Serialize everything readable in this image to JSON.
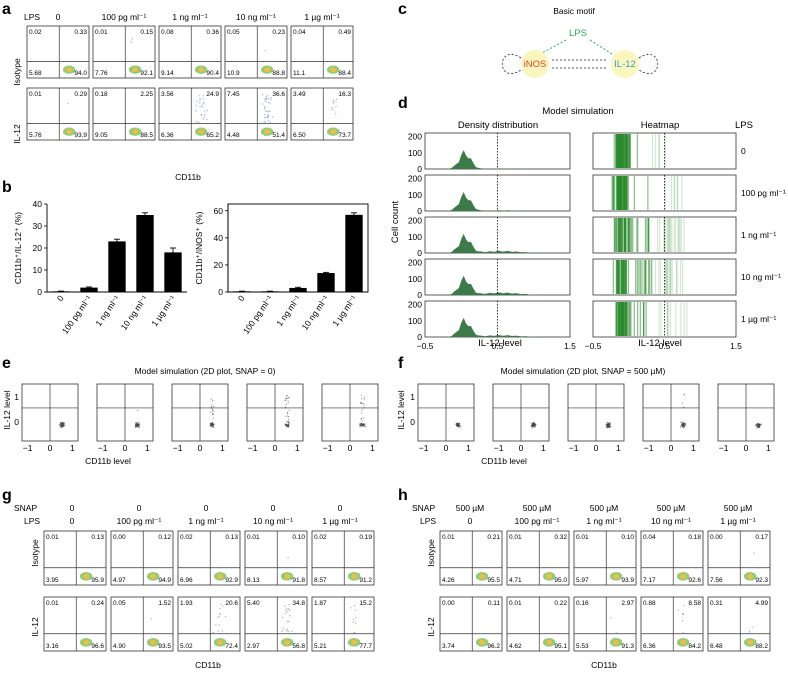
{
  "panel_labels": {
    "a": "a",
    "b": "b",
    "c": "c",
    "d": "d",
    "e": "e",
    "f": "f",
    "g": "g",
    "h": "h"
  },
  "panel_a": {
    "lps_header": "LPS",
    "lps_levels": [
      "0",
      "100 pg ml⁻¹",
      "1 ng ml⁻¹",
      "10 ng ml⁻¹",
      "1 µg ml⁻¹"
    ],
    "row_labels": [
      "Isotype",
      "IL-12"
    ],
    "x_label": "CD11b",
    "quadrants": [
      [
        [
          "0.02",
          "0.33",
          "5.68",
          "94.0"
        ],
        [
          "0.01",
          "0.15",
          "7.76",
          "92.1"
        ],
        [
          "0.08",
          "0.36",
          "9.14",
          "90.4"
        ],
        [
          "0.05",
          "0.23",
          "10.9",
          "88.8"
        ],
        [
          "0.04",
          "0.49",
          "11.1",
          "88.4"
        ]
      ],
      [
        [
          "0.01",
          "0.29",
          "5.76",
          "93.9"
        ],
        [
          "0.18",
          "2.25",
          "9.05",
          "88.5"
        ],
        [
          "3.56",
          "24.9",
          "6.36",
          "65.2"
        ],
        [
          "7.45",
          "36.6",
          "4.48",
          "51.4"
        ],
        [
          "3.49",
          "16.3",
          "6.50",
          "73.7"
        ]
      ]
    ]
  },
  "panel_b": {
    "categories": [
      "0",
      "100 pg ml⁻¹",
      "1 ng ml⁻¹",
      "10 ng ml⁻¹",
      "1 µg ml⁻¹"
    ]
  },
  "chart_data": [
    {
      "type": "bar",
      "title": "",
      "xlabel": "",
      "ylabel": "CD11b⁺/IL-12⁺ (%)",
      "categories": [
        "0",
        "100 pg ml⁻¹",
        "1 ng ml⁻¹",
        "10 ng ml⁻¹",
        "1 µg ml⁻¹"
      ],
      "values": [
        0.3,
        2.0,
        23,
        35,
        18
      ],
      "errors": [
        0.1,
        0.3,
        1.0,
        1.0,
        2.0
      ],
      "ylim": [
        0,
        40
      ],
      "yticks": [
        "0",
        "10",
        "20",
        "30",
        "40"
      ]
    },
    {
      "type": "bar",
      "title": "",
      "xlabel": "",
      "ylabel": "CD11b⁺/iNOS⁺ (%)",
      "categories": [
        "0",
        "100 pg ml⁻¹",
        "1 ng ml⁻¹",
        "10 ng ml⁻¹",
        "1 µg ml⁻¹"
      ],
      "values": [
        0.5,
        0.5,
        3,
        14,
        57
      ],
      "errors": [
        0.1,
        0.1,
        0.5,
        0.5,
        1.5
      ],
      "ylim": [
        0,
        65
      ],
      "yticks": [
        "0",
        "20",
        "40",
        "60"
      ]
    }
  ],
  "panel_c": {
    "title": "Basic motif",
    "lps": "LPS",
    "inos": "iNOS",
    "il12": "IL-12",
    "colors": {
      "lps": "#2fae58",
      "inos": "#e0442a",
      "il12": "#3a9ad0",
      "node": "#fbf6bd"
    }
  },
  "panel_d": {
    "title": "Model simulation",
    "left_title": "Density distribution",
    "right_title": "Heatmap",
    "lps_header": "LPS",
    "lps_levels": [
      "0",
      "100 pg ml⁻¹",
      "1 ng ml⁻¹",
      "10 ng ml⁻¹",
      "1 µg ml⁻¹"
    ],
    "y_label": "Cell count",
    "y_ticks": [
      "0",
      "100",
      "200"
    ],
    "x_ticks": [
      "−0.5",
      "0.5",
      "1.5"
    ],
    "x_label": "IL-12 level",
    "fill_color": "#3d7a4a"
  },
  "panel_e": {
    "title": "Model simulation (2D plot, SNAP = 0)",
    "y_label": "IL-12 level",
    "x_label": "CD11b level",
    "y_ticks": [
      "1",
      "0"
    ],
    "x_ticks": [
      "−1",
      "0",
      "1"
    ]
  },
  "panel_f": {
    "title": "Model simulation (2D plot, SNAP = 500 µM)",
    "y_label": "IL-12 level",
    "x_label": "CD11b level",
    "y_ticks": [
      "1",
      "0"
    ],
    "x_ticks": [
      "−1",
      "0",
      "1"
    ]
  },
  "panel_g": {
    "snap_header": "SNAP",
    "lps_header": "LPS",
    "snap_levels": [
      "0",
      "0",
      "0",
      "0",
      "0"
    ],
    "lps_levels": [
      "0",
      "100 pg ml⁻¹",
      "1 ng ml⁻¹",
      "10 ng ml⁻¹",
      "1 µg ml⁻¹"
    ],
    "row_labels": [
      "Isotype",
      "IL-12"
    ],
    "x_label": "CD11b",
    "quadrants": [
      [
        [
          "0.01",
          "0.13",
          "3.95",
          "95.9"
        ],
        [
          "0.00",
          "0.12",
          "4.97",
          "94.9"
        ],
        [
          "0.02",
          "0.13",
          "6.96",
          "92.9"
        ],
        [
          "0.01",
          "0.10",
          "8.13",
          "91.8"
        ],
        [
          "0.02",
          "0.19",
          "8.57",
          "91.2"
        ]
      ],
      [
        [
          "0.01",
          "0.24",
          "3.16",
          "96.6"
        ],
        [
          "0.05",
          "1.52",
          "4.90",
          "93.5"
        ],
        [
          "1.93",
          "20.6",
          "5.02",
          "72.4"
        ],
        [
          "5.40",
          "34.8",
          "2.97",
          "56.8"
        ],
        [
          "1.87",
          "15.2",
          "5.21",
          "77.7"
        ]
      ]
    ]
  },
  "panel_h": {
    "snap_header": "SNAP",
    "lps_header": "LPS",
    "snap_levels": [
      "500 µM",
      "500 µM",
      "500 µM",
      "500 µM",
      "500 µM"
    ],
    "lps_levels": [
      "0",
      "100 pg ml⁻¹",
      "1 ng ml⁻¹",
      "10 ng ml⁻¹",
      "1 µg ml⁻¹"
    ],
    "row_labels": [
      "Isotype",
      "IL-12"
    ],
    "x_label": "CD11b",
    "quadrants": [
      [
        [
          "0.01",
          "0.21",
          "4.26",
          "95.5"
        ],
        [
          "0.01",
          "0.32",
          "4.71",
          "95.0"
        ],
        [
          "0.01",
          "0.10",
          "5.97",
          "93.9"
        ],
        [
          "0.04",
          "0.18",
          "7.17",
          "92.6"
        ],
        [
          "0.00",
          "0.17",
          "7.56",
          "92.3"
        ]
      ],
      [
        [
          "0.00",
          "0.11",
          "3.74",
          "96.2"
        ],
        [
          "0.01",
          "0.22",
          "4.62",
          "95.1"
        ],
        [
          "0.16",
          "2.97",
          "5.53",
          "91.3"
        ],
        [
          "0.88",
          "8.58",
          "6.36",
          "84.2"
        ],
        [
          "0.31",
          "4.99",
          "6.48",
          "88.2"
        ]
      ]
    ]
  }
}
